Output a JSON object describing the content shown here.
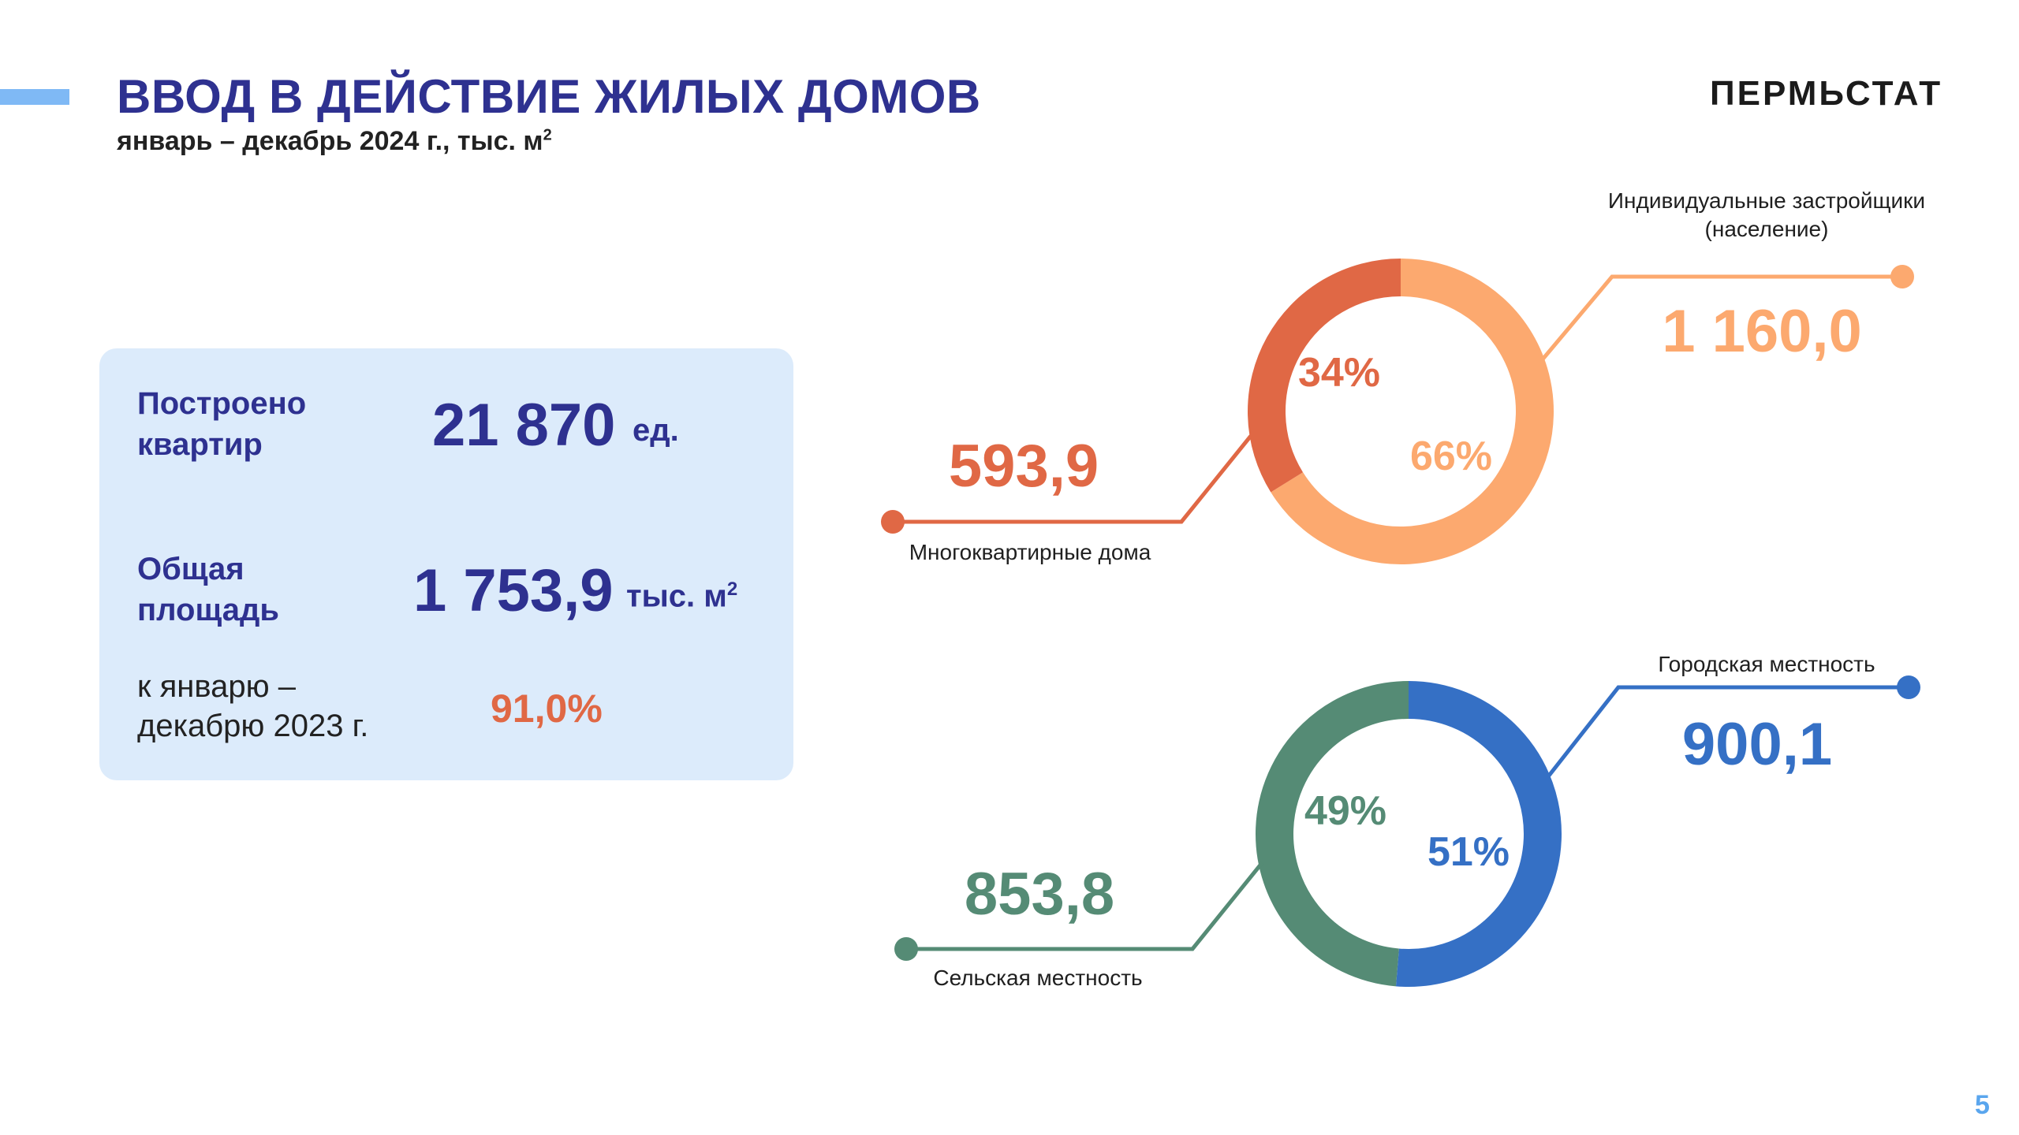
{
  "header": {
    "title": "ВВОД В ДЕЙСТВИЕ ЖИЛЫХ ДОМОВ",
    "subtitle": "январь – декабрь 2024 г., тыс. м",
    "subtitle_sup": "2",
    "logo": "ПЕРМЬСТАТ"
  },
  "summary": {
    "apartments_label_1": "Построено",
    "apartments_label_2": "квартир",
    "apartments_value": "21 870",
    "apartments_unit": "ед.",
    "area_label_1": "Общая",
    "area_label_2": "площадь",
    "area_value": "1 753,9",
    "area_unit": "тыс. м",
    "area_unit_sup": "2",
    "compare_label_1": "к январю –",
    "compare_label_2": "декабрю 2023 г.",
    "compare_value": "91,0%"
  },
  "page_number": "5",
  "colors": {
    "title": "#2e3190",
    "apartment_buildings": "#e06845",
    "individual_builders": "#fca96f",
    "urban": "#3570c5",
    "rural": "#558b75"
  },
  "chart_data": [
    {
      "type": "pie",
      "categories": [
        "Многоквартирные дома",
        "Индивидуальные застройщики (население)"
      ],
      "values": [
        593.9,
        1160.0
      ],
      "value_labels": [
        "593,9",
        "1 160,0"
      ],
      "percent_labels": [
        "34%",
        "66%"
      ],
      "legend_lines": [
        [
          "Многоквартирные дома"
        ],
        [
          "Индивидуальные застройщики",
          "(население)"
        ]
      ],
      "colors": [
        "#e06845",
        "#fca96f"
      ]
    },
    {
      "type": "pie",
      "categories": [
        "Сельская местность",
        "Городская местность"
      ],
      "values": [
        853.8,
        900.1
      ],
      "value_labels": [
        "853,8",
        "900,1"
      ],
      "percent_labels": [
        "49%",
        "51%"
      ],
      "legend_lines": [
        [
          "Сельская местность"
        ],
        [
          "Городская местность"
        ]
      ],
      "colors": [
        "#558b75",
        "#3570c5"
      ]
    }
  ]
}
